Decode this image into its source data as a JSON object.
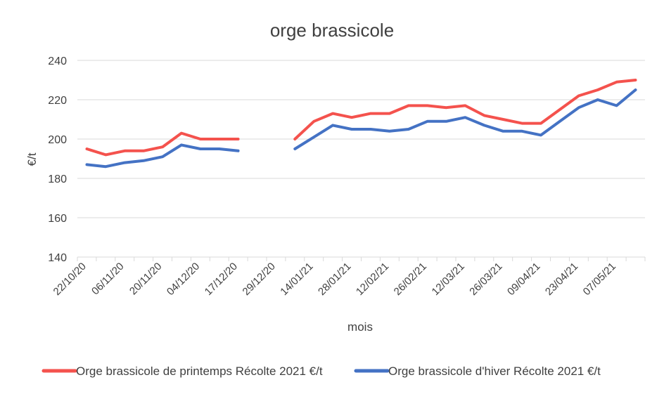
{
  "chart_data": {
    "type": "line",
    "title": "orge brassicole",
    "xlabel": "mois",
    "ylabel": "€/t",
    "ylim": [
      140,
      240
    ],
    "yticks": [
      140,
      160,
      180,
      200,
      220,
      240
    ],
    "grid": "horizontal",
    "legend_position": "bottom",
    "x_tick_labels": [
      "22/10/20",
      "06/11/20",
      "20/11/20",
      "04/12/20",
      "17/12/20",
      "29/12/20",
      "14/01/21",
      "28/01/21",
      "12/02/21",
      "26/02/21",
      "12/03/21",
      "26/03/21",
      "09/04/21",
      "23/04/21",
      "07/05/21"
    ],
    "x_tick_every": 2,
    "series": [
      {
        "name": "Orge brassicole de printemps Récolte 2021 €/t",
        "color": "#f4524d",
        "values": [
          195,
          192,
          194,
          194,
          196,
          203,
          200,
          200,
          200,
          null,
          null,
          200,
          209,
          213,
          211,
          213,
          213,
          217,
          217,
          216,
          217,
          212,
          210,
          208,
          208,
          215,
          222,
          225,
          229,
          230
        ]
      },
      {
        "name": "Orge brassicole d'hiver Récolte 2021 €/t",
        "color": "#4472c4",
        "values": [
          187,
          186,
          188,
          189,
          191,
          197,
          195,
          195,
          194,
          null,
          null,
          195,
          201,
          207,
          205,
          205,
          204,
          205,
          209,
          209,
          211,
          207,
          204,
          204,
          202,
          209,
          216,
          220,
          217,
          225
        ]
      }
    ]
  }
}
